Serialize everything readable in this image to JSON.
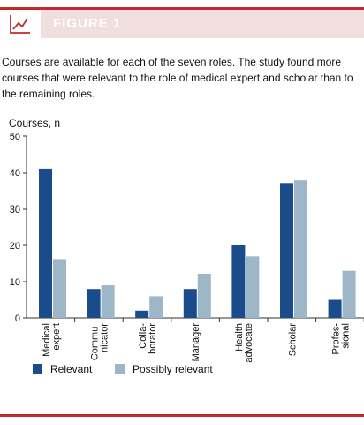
{
  "header": {
    "title": "FIGURE 1",
    "icon": "line-chart-icon",
    "accent_color": "#c0292b"
  },
  "caption": "Courses are available for each of the seven roles. The study found more courses that were relevant to the role of medical expert and scholar than to the remaining roles.",
  "chart_data": {
    "type": "bar",
    "ylabel": "Courses, n",
    "ylim": [
      0,
      50
    ],
    "yticks": [
      0,
      10,
      20,
      30,
      40,
      50
    ],
    "categories": [
      [
        "Medical",
        "expert"
      ],
      [
        "Commu-",
        "nicator"
      ],
      [
        "Colla-",
        "borator"
      ],
      [
        "Manager"
      ],
      [
        "Health",
        "advocate"
      ],
      [
        "Scholar"
      ],
      [
        "Profes-",
        "sional"
      ]
    ],
    "series": [
      {
        "name": "Relevant",
        "color": "#1a4c8c",
        "values": [
          41,
          8,
          2,
          8,
          20,
          37,
          5
        ]
      },
      {
        "name": "Possibly relevant",
        "color": "#9db6c8",
        "values": [
          16,
          9,
          6,
          12,
          17,
          38,
          13
        ]
      }
    ],
    "legend": "bottom-left",
    "grid": false
  }
}
